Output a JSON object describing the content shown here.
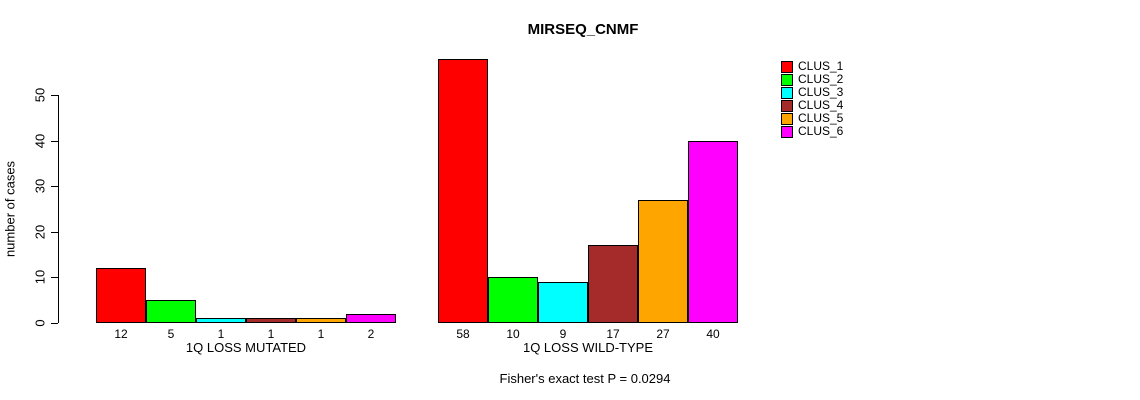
{
  "chart_data": {
    "type": "bar",
    "title": "MIRSEQ_CNMF",
    "ylabel": "number of cases",
    "xlabel": "",
    "caption": "Fisher's exact test P = 0.0294",
    "ylim": [
      0,
      50
    ],
    "yticks": [
      0,
      10,
      20,
      30,
      40,
      50
    ],
    "grid": false,
    "legend_position": "top-right",
    "bar_value_labels": true,
    "categories": [
      "1Q LOSS MUTATED",
      "1Q LOSS WILD-TYPE"
    ],
    "series": [
      {
        "name": "CLUS_1",
        "color": "#FF0000",
        "values": [
          12,
          58
        ]
      },
      {
        "name": "CLUS_2",
        "color": "#00FF00",
        "values": [
          5,
          10
        ]
      },
      {
        "name": "CLUS_3",
        "color": "#00FFFF",
        "values": [
          1,
          9
        ]
      },
      {
        "name": "CLUS_4",
        "color": "#A52A2A",
        "values": [
          1,
          17
        ]
      },
      {
        "name": "CLUS_5",
        "color": "#FFA500",
        "values": [
          1,
          27
        ]
      },
      {
        "name": "CLUS_6",
        "color": "#FF00FF",
        "values": [
          2,
          40
        ]
      }
    ]
  }
}
